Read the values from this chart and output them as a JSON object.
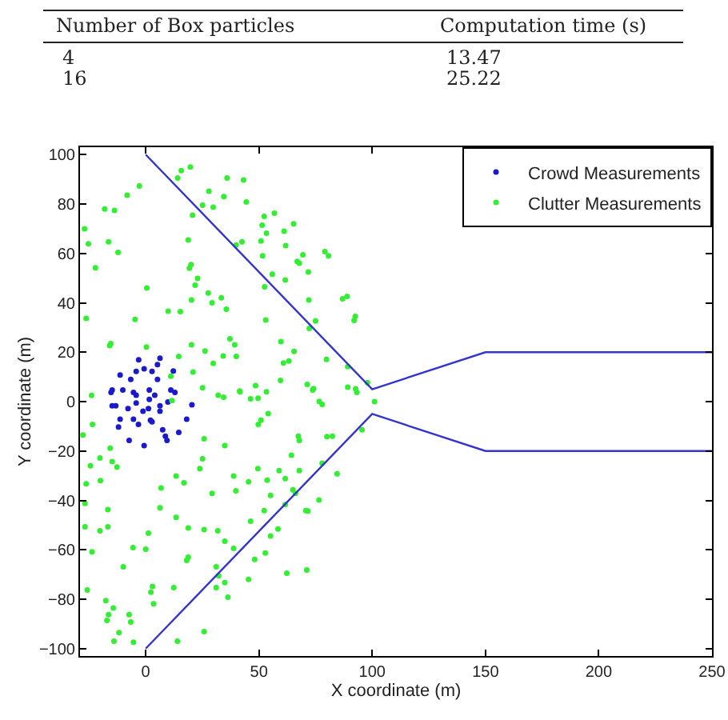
{
  "chart_data": {
    "type": "scatter",
    "xlabel": "X coordinate (m)",
    "ylabel": "Y coordinate (m)",
    "annotations": [
      "Number of Box particles",
      "Computation time (s)",
      "4",
      "13.47",
      "16",
      "25.22"
    ],
    "xlim": [
      -29,
      250
    ],
    "ylim": [
      -103,
      103
    ],
    "xticks": [
      0,
      50,
      100,
      150,
      200,
      250
    ],
    "yticks": [
      -100,
      -80,
      -60,
      -40,
      -20,
      0,
      20,
      40,
      60,
      80,
      100
    ],
    "grid": false,
    "legend": "top right",
    "marker": "circle",
    "series": [
      {
        "name": "Crowd Measurements",
        "color": "#1a1acc",
        "x": [
          -15.3,
          -10.1,
          -5.4,
          1.6,
          4,
          12.9,
          -13.2,
          -7.8,
          -4.2,
          -1.2,
          1.2,
          6.3,
          9.8,
          20.4,
          18.1,
          -11.3,
          -5.4,
          -12,
          -3.2,
          2.8,
          7.5,
          8.7,
          14.6,
          -7.3,
          -0.7,
          9.4,
          2.1,
          -3.1,
          6.3,
          5.2,
          -0.7,
          -4.2,
          2.8,
          12.2,
          -11.3,
          -6.6,
          5.2,
          11.1,
          -14.8,
          -4.2,
          1.6,
          -14.8,
          6.3
        ],
        "values": [
          3.7,
          4.7,
          3.7,
          4.7,
          2.6,
          3.7,
          -1.7,
          -2.8,
          -0.6,
          -3.9,
          -2.8,
          -3.9,
          -0.2,
          -1.3,
          -7.1,
          -7.1,
          -7.1,
          -10.3,
          -9.2,
          -8.2,
          -11.4,
          -14,
          -12.5,
          -15.7,
          -17.8,
          -15.7,
          -7.5,
          16.9,
          17.6,
          15,
          13.3,
          12.2,
          12.2,
          12.4,
          10.8,
          9,
          9,
          4.7,
          4.7,
          2.6,
          0.9,
          -1.7,
          -1.7
        ]
      },
      {
        "name": "Clutter Measurements",
        "color": "#33ee33",
        "x": [
          15.7,
          19.7,
          14.1,
          35.9,
          43.2,
          -2.8,
          -8.2,
          27.9,
          34.5,
          25.1,
          29.8,
          44.4,
          -18.1,
          -13.8,
          20.7,
          52.3,
          56.8,
          51.4,
          65.3,
          61.1,
          -27,
          53.3,
          50.9,
          42.5,
          39.9,
          18.8,
          -16.4,
          -25.3,
          61.8,
          -12.2,
          69.4,
          79.1,
          80.7,
          51.6,
          66.9,
          67.8,
          -22.2,
          20,
          19.3,
          71.8,
          55.9,
          22.9,
          21.8,
          0.5,
          61.6,
          52.5,
          27.6,
          33.4,
          29.3,
          35.6,
          20.2,
          72,
          86.9,
          88.9,
          9.9,
          15.3,
          -26.3,
          92.5,
          92,
          -4.7,
          53,
          75,
          72.2,
          37.2,
          39.3,
          20.2,
          59.7,
          -15.4,
          -15.9,
          0.3,
          26.2,
          34.2,
          40,
          14.6,
          65.5,
          60.8,
          63.2,
          79.8,
          20.9,
          89.2,
          29.8,
          59.5,
          71.3,
          74.1,
          25.1,
          41.5,
          48.5,
          89.2,
          92.7,
          97.9,
          34.4,
          49.6,
          76.6,
          101,
          -23.9,
          11.1,
          11.6,
          32,
          41.6,
          46.3,
          53.3,
          73.7,
          93.2,
          77.9,
          -23.5,
          54.1,
          50.9,
          49.7,
          67.4,
          67.8,
          80,
          82.4,
          95.5,
          25.8,
          34.9,
          -27.7,
          -15.7,
          -20.2,
          -14.8,
          -12.7,
          -24.4,
          25.1,
          23.9,
          64.3,
          77.9,
          67.8,
          58.9,
          49.5,
          13.4,
          16.9,
          38.8,
          45.4,
          53.6,
          61.6,
          84.5,
          -26.3,
          -20,
          6.8,
          29.3,
          39.8,
          55.1,
          65,
          66.1,
          76.5,
          -26.8,
          6.3,
          13.4,
          61.6,
          71.6,
          -16.7,
          52.3,
          46.3,
          18.8,
          25.8,
          31.8,
          70.7,
          -26.8,
          -20.2,
          -16.7,
          1.2,
          58.4,
          55.1,
          -23.7,
          -5.6,
          0,
          34.9,
          38.8,
          52.8,
          48.1,
          18.8,
          18.1,
          -9.9,
          31.1,
          62.3,
          71.1,
          32.2,
          45.4,
          12.4,
          3,
          2.3,
          31.1,
          34.9,
          -25.8,
          36.3,
          -17.6,
          -14.3,
          -16.4,
          -17.1,
          3.5,
          -7.3,
          -6.6,
          -11.8,
          -5.4,
          25.8,
          -14,
          14
        ],
        "values": [
          93.5,
          95,
          90.5,
          90.5,
          89.7,
          87.3,
          83.6,
          85.2,
          83,
          79.5,
          78.7,
          80.8,
          78,
          77.4,
          75.5,
          75,
          76.3,
          71.4,
          72,
          69,
          70,
          68.2,
          65,
          64.7,
          63.4,
          65.4,
          64.7,
          63.9,
          63.2,
          60.4,
          59.4,
          60.7,
          59,
          59,
          56.8,
          56,
          54.2,
          55.5,
          54,
          52.5,
          51.6,
          49.9,
          47.1,
          46,
          49.2,
          46.5,
          44,
          42,
          40,
          37.4,
          41.1,
          41.1,
          41.6,
          42.6,
          36.6,
          36.4,
          33.7,
          34.5,
          32.9,
          33.3,
          33,
          32.6,
          29.6,
          25.4,
          23,
          23,
          24.3,
          23.5,
          22.7,
          22.1,
          20.5,
          18.5,
          18.3,
          18.3,
          20.3,
          15.6,
          16.4,
          17.1,
          12,
          14.2,
          15.5,
          8.6,
          7,
          5.3,
          5.6,
          4.3,
          6.5,
          5.8,
          5.2,
          7.7,
          1.8,
          1.4,
          0.1,
          0,
          2.5,
          10.3,
          0.4,
          2.6,
          4,
          1.1,
          4,
          4.7,
          3.7,
          -1.1,
          -9.2,
          -4.9,
          -7.5,
          -9.2,
          -14,
          -15.7,
          -14.2,
          -14,
          -11.4,
          -15.1,
          -17.8,
          -13.5,
          -18.9,
          -22.8,
          -24.3,
          -26.5,
          -26,
          -23.2,
          -27.1,
          -21.7,
          -24.9,
          -27.9,
          -27.9,
          -27.1,
          -30.1,
          -32.9,
          -30.1,
          -32.5,
          -31.8,
          -31.2,
          -29.2,
          -33.3,
          -32,
          -35,
          -37.2,
          -36.1,
          -38,
          -35.7,
          -37.2,
          -39.8,
          -41.2,
          -43,
          -46.9,
          -41.7,
          -44.3,
          -43.7,
          -44.1,
          -48.4,
          -51.2,
          -51.8,
          -52.3,
          -44.1,
          -50.7,
          -52.3,
          -50.7,
          -53.3,
          -51.6,
          -54.4,
          -60.8,
          -59.1,
          -59.8,
          -56.5,
          -59.4,
          -61.3,
          -63.9,
          -63,
          -64.3,
          -66.9,
          -66.9,
          -69.5,
          -68.2,
          -70.5,
          -72,
          -75.3,
          -74.8,
          -77.2,
          -75.3,
          -73.3,
          -76.3,
          -79.2,
          -80.6,
          -83.6,
          -86.2,
          -88.6,
          -81.9,
          -86.2,
          -89.2,
          -93.5,
          -97.4,
          -93.1,
          -97,
          -97
        ]
      },
      {
        "type": "line",
        "color": "#3535cc",
        "marker": "none",
        "x": [
          0,
          100,
          150,
          250
        ],
        "values": [
          100,
          5,
          20,
          20
        ]
      },
      {
        "type": "line",
        "color": "#3535cc",
        "marker": "none",
        "x": [
          0,
          100,
          150,
          250
        ],
        "values": [
          -100,
          -5,
          -20,
          -20
        ]
      }
    ]
  }
}
